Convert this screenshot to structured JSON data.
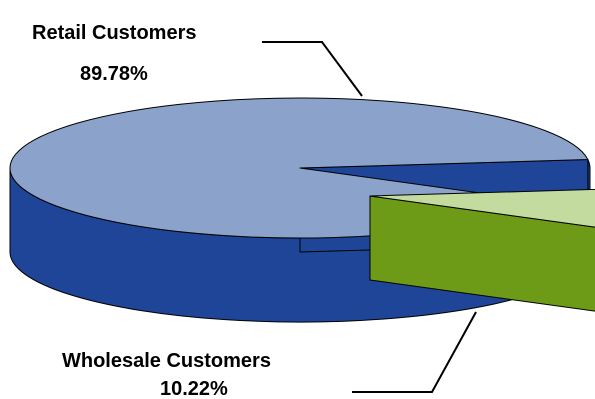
{
  "chart_data": {
    "type": "pie",
    "style": "3d-exploded",
    "title": "",
    "slices": [
      {
        "name": "Retail Customers",
        "label": "Retail Customers",
        "value": 89.78,
        "value_label": "89.78%",
        "top_color": "#8BA3CB",
        "side_color": "#1F4598"
      },
      {
        "name": "Wholesale Customers",
        "label": "Wholesale Customers",
        "value": 10.22,
        "value_label": "10.22%",
        "top_color": "#C4DBA0",
        "side_color": "#6E9B17",
        "exploded": true
      }
    ],
    "legend": "none"
  }
}
